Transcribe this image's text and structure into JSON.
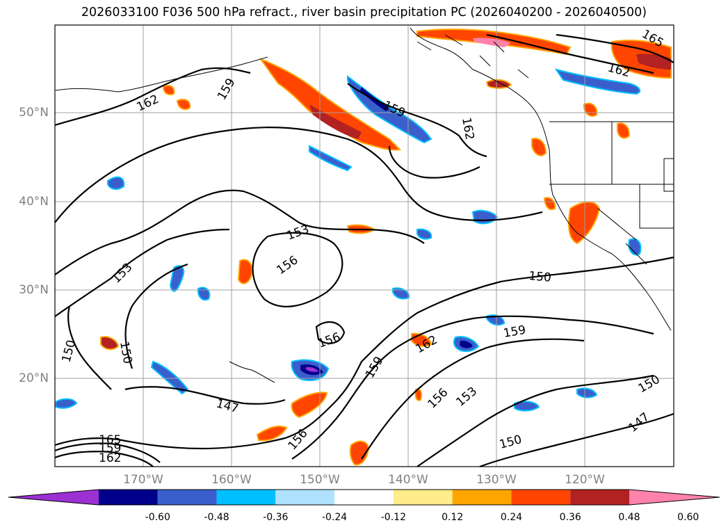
{
  "title": "2026033100 F036 500 hPa refract., river basin precipitation PC (2026040200 - 2026040500)",
  "latitude_labels": [
    "50°N",
    "40°N",
    "30°N",
    "20°N"
  ],
  "longitude_labels": [
    "170°W",
    "160°W",
    "150°W",
    "140°W",
    "130°W",
    "120°W"
  ],
  "colorbar": {
    "colors": [
      "#9b30d3",
      "#00008b",
      "#3a5fcd",
      "#00bfff",
      "#b0e2ff",
      "#ffffff",
      "#ffec8b",
      "#ffa500",
      "#ff4500",
      "#b22222",
      "#ff82ab"
    ],
    "tick_labels": [
      "-0.60",
      "-0.48",
      "-0.36",
      "-0.24",
      "-0.12",
      "0.12",
      "0.24",
      "0.36",
      "0.48",
      "0.60"
    ]
  },
  "contour_labels": [
    "162",
    "159",
    "159",
    "162",
    "162",
    "165",
    "153",
    "156",
    "153",
    "150",
    "150",
    "156",
    "150",
    "159",
    "162",
    "159",
    "147",
    "156",
    "156",
    "153",
    "150",
    "150",
    "147",
    "162",
    "159",
    "165"
  ]
}
